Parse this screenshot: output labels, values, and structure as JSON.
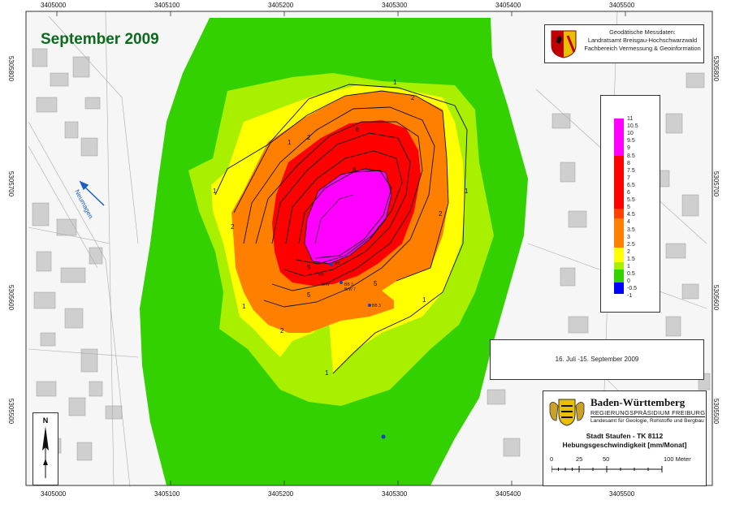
{
  "title": "September 2009",
  "credit": {
    "line1": "Geodätische Messdaten:",
    "line2": "Landratsamt Breisgau-Hochschwarzwald",
    "line3": "Fachbereich Vermessung & Geoinformation"
  },
  "period": "16. Juli -15. September 2009",
  "footer": {
    "state": "Baden-Württemberg",
    "authority": "REGIERUNGSPRÄSIDIUM FREIBURG",
    "department": "Landesamt für Geologie, Rohstoffe und Bergbau",
    "map_title": "Stadt Staufen - TK 8112",
    "map_subtitle": "Hebungsgeschwindigkeit [mm/Monat]",
    "scale_labels": [
      "0",
      "25",
      "50",
      "100 Meter"
    ]
  },
  "river_label": "Neumagen",
  "north_label": "N",
  "coordinates": {
    "easting": [
      "3405000",
      "3405100",
      "3405200",
      "3405300",
      "3405400",
      "3405500"
    ],
    "northing": [
      "5305800",
      "5305700",
      "5305600",
      "5305500"
    ]
  },
  "legend": {
    "labels": [
      "11",
      "10.5",
      "10",
      "9.5",
      "9",
      "8.5",
      "8",
      "7.5",
      "7",
      "6.5",
      "6",
      "5.5",
      "5",
      "4.5",
      "4",
      "3.5",
      "3",
      "2.5",
      "2",
      "1.5",
      "1",
      "0.5",
      "0",
      "-0.5",
      "-1"
    ],
    "classes": [
      {
        "value_range": "8.5-11",
        "color": "#ff00ff"
      },
      {
        "value_range": "5-8.5",
        "color": "#ff0000"
      },
      {
        "value_range": "4.5-5",
        "color": "#ff4000"
      },
      {
        "value_range": "2-4.5",
        "color": "#ff7f00"
      },
      {
        "value_range": "1-2",
        "color": "#ffff00"
      },
      {
        "value_range": "0.5-1",
        "color": "#a8f000"
      },
      {
        "value_range": "0-0.5",
        "color": "#33d100"
      },
      {
        "value_range": "-1-0",
        "color": "#0000ff"
      }
    ]
  },
  "contour_labels": [
    "1",
    "2",
    "3",
    "4",
    "5",
    "6",
    "7",
    "8",
    "9"
  ],
  "measurement_points": [
    "BB 3",
    "BrW 7",
    "BB 3"
  ],
  "colors": {
    "uplift_max": "#ff00ff",
    "uplift_high": "#ff0000",
    "uplift_mid": "#ff7f00",
    "uplift_low": "#ffff00",
    "uplift_minor": "#a8f000",
    "stable": "#33d100",
    "title_green": "#0c6a1c",
    "river_blue": "#1b5fbe"
  }
}
